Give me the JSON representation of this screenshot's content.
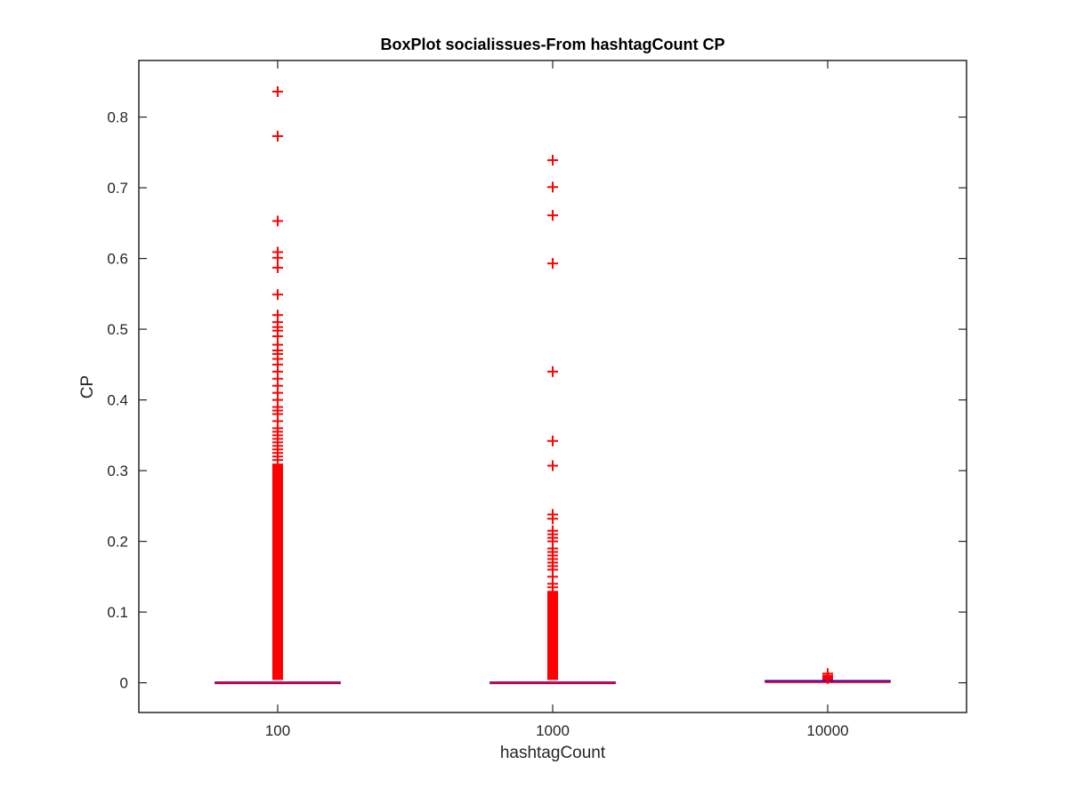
{
  "chart_data": {
    "type": "box",
    "title": "BoxPlot socialissues-From hashtagCount CP",
    "xlabel": "hashtagCount",
    "ylabel": "CP",
    "categories": [
      "100",
      "1000",
      "10000"
    ],
    "ylim": [
      -0.042,
      0.88
    ],
    "yticks": [
      0,
      0.1,
      0.2,
      0.3,
      0.4,
      0.5,
      0.6,
      0.7,
      0.8
    ],
    "ytick_labels": [
      "0",
      "0.1",
      "0.2",
      "0.3",
      "0.4",
      "0.5",
      "0.6",
      "0.7",
      "0.8"
    ],
    "grid": false,
    "colors": {
      "outlier": "#ff0000",
      "median": "#ff0000",
      "box": "#0000ff",
      "axis": "#262626"
    },
    "boxes": [
      {
        "category": "100",
        "q1": 0,
        "median": 0,
        "q3": 0,
        "whisker_low": 0,
        "whisker_high": 0,
        "outliers": [
          0.836,
          0.773,
          0.653,
          0.609,
          0.601,
          0.587,
          0.549,
          0.52,
          0.51,
          0.503,
          0.498,
          0.49,
          0.478,
          0.47,
          0.465,
          0.458,
          0.45,
          0.44,
          0.43,
          0.42,
          0.41,
          0.4,
          0.39,
          0.385,
          0.38,
          0.37,
          0.36,
          0.355,
          0.35,
          0.345,
          0.34,
          0.335,
          0.33,
          0.325,
          0.32,
          0.315
        ],
        "dense_outlier_range": [
          0.004,
          0.31
        ]
      },
      {
        "category": "1000",
        "q1": 0,
        "median": 0,
        "q3": 0,
        "whisker_low": 0,
        "whisker_high": 0,
        "outliers": [
          0.739,
          0.701,
          0.661,
          0.593,
          0.44,
          0.342,
          0.307,
          0.238,
          0.232,
          0.215,
          0.21,
          0.205,
          0.2,
          0.19,
          0.185,
          0.18,
          0.175,
          0.17,
          0.165,
          0.16,
          0.15,
          0.14,
          0.135
        ],
        "dense_outlier_range": [
          0.004,
          0.13
        ]
      },
      {
        "category": "10000",
        "q1": 0,
        "median": 0.001,
        "q3": 0.002,
        "whisker_low": 0,
        "whisker_high": 0.003,
        "outliers": [
          0.013,
          0.01,
          0.008,
          0.006
        ],
        "dense_outlier_range": [
          0.004,
          0.01
        ]
      }
    ]
  }
}
